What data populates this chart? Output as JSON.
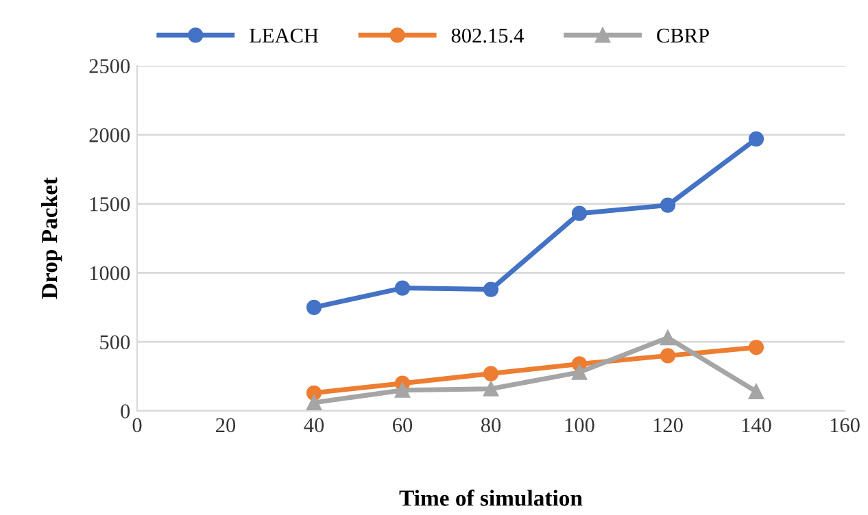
{
  "chart_data": {
    "type": "line",
    "xlabel": "Time of simulation",
    "ylabel": "Drop Packet",
    "x": [
      40,
      60,
      80,
      100,
      120,
      140
    ],
    "series": [
      {
        "name": "LEACH",
        "color": "#4472c4",
        "values": [
          750,
          890,
          880,
          1430,
          1490,
          1970
        ]
      },
      {
        "name": "802.15.4",
        "color": "#ed7d31",
        "values": [
          130,
          200,
          270,
          340,
          400,
          460
        ]
      },
      {
        "name": "CBRP",
        "color": "#a5a5a5",
        "values": [
          60,
          150,
          160,
          280,
          530,
          140
        ],
        "marker": "triangle"
      }
    ],
    "marker": "circle",
    "line_style": "solid",
    "xlim": [
      0,
      160
    ],
    "xticks": [
      0,
      20,
      40,
      60,
      80,
      100,
      120,
      140,
      160
    ],
    "ylim": [
      0,
      2500
    ],
    "yticks": [
      0,
      500,
      1000,
      1500,
      2000,
      2500
    ],
    "grid": "y",
    "legend": "top"
  }
}
